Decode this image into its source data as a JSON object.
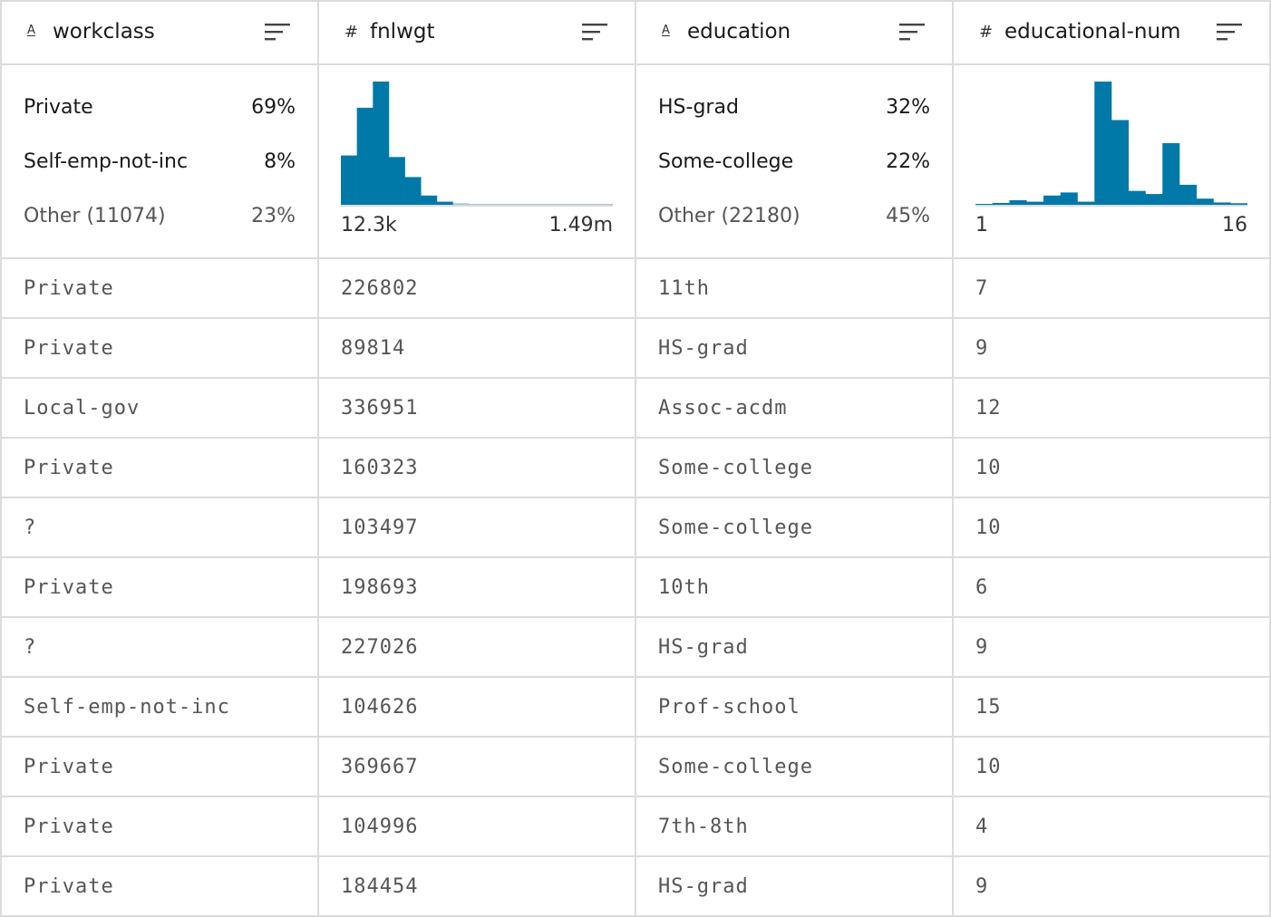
{
  "columns": [
    {
      "name": "workclass",
      "type_icon": "text-type-icon",
      "kind": "categorical",
      "top": [
        {
          "label": "Private",
          "pct": "69%"
        },
        {
          "label": "Self-emp-not-inc",
          "pct": "8%"
        }
      ],
      "other": {
        "label": "Other (11074)",
        "pct": "23%"
      },
      "values": [
        "Private",
        "Private",
        "Local-gov",
        "Private",
        "?",
        "Private",
        "?",
        "Self-emp-not-inc",
        "Private",
        "Private",
        "Private"
      ]
    },
    {
      "name": "fnlwgt",
      "type_icon": "number-type-icon",
      "kind": "numeric",
      "range_min": "12.3k",
      "range_max": "1.49m",
      "values": [
        "226802",
        "89814",
        "336951",
        "160323",
        "103497",
        "198693",
        "227026",
        "104626",
        "369667",
        "104996",
        "184454"
      ]
    },
    {
      "name": "education",
      "type_icon": "text-type-icon",
      "kind": "categorical",
      "top": [
        {
          "label": "HS-grad",
          "pct": "32%"
        },
        {
          "label": "Some-college",
          "pct": "22%"
        }
      ],
      "other": {
        "label": "Other (22180)",
        "pct": "45%"
      },
      "values": [
        "11th",
        "HS-grad",
        "Assoc-acdm",
        "Some-college",
        "Some-college",
        "10th",
        "HS-grad",
        "Prof-school",
        "Some-college",
        "7th-8th",
        "HS-grad"
      ]
    },
    {
      "name": "educational-num",
      "type_icon": "number-type-icon",
      "kind": "numeric",
      "range_min": "1",
      "range_max": "16",
      "values": [
        "7",
        "9",
        "12",
        "10",
        "10",
        "6",
        "9",
        "15",
        "10",
        "4",
        "9"
      ]
    }
  ],
  "colors": {
    "bar": "#0079a8",
    "bar_faint": "#9fc7d9",
    "border": "#dcdcdc"
  },
  "chart_data": [
    {
      "type": "bar",
      "column": "fnlwgt",
      "bins": 17,
      "x_range": [
        "12.3k",
        "1.49m"
      ],
      "values": [
        32,
        63,
        80,
        31,
        18,
        6,
        2,
        1,
        0.5,
        0.3,
        0.2,
        0.1,
        0.1,
        0.1,
        0.1,
        0.1,
        0.1
      ],
      "ylim": [
        0,
        80
      ]
    },
    {
      "type": "bar",
      "column": "educational-num",
      "categories": [
        "1",
        "2",
        "3",
        "4",
        "5",
        "6",
        "7",
        "8",
        "9",
        "10",
        "11",
        "12",
        "13",
        "14",
        "15",
        "16"
      ],
      "values": [
        0.5,
        1.2,
        3,
        2,
        6,
        8,
        2,
        80,
        55,
        9,
        7,
        40,
        13,
        4,
        1.5,
        1
      ],
      "ylim": [
        0,
        80
      ]
    }
  ]
}
